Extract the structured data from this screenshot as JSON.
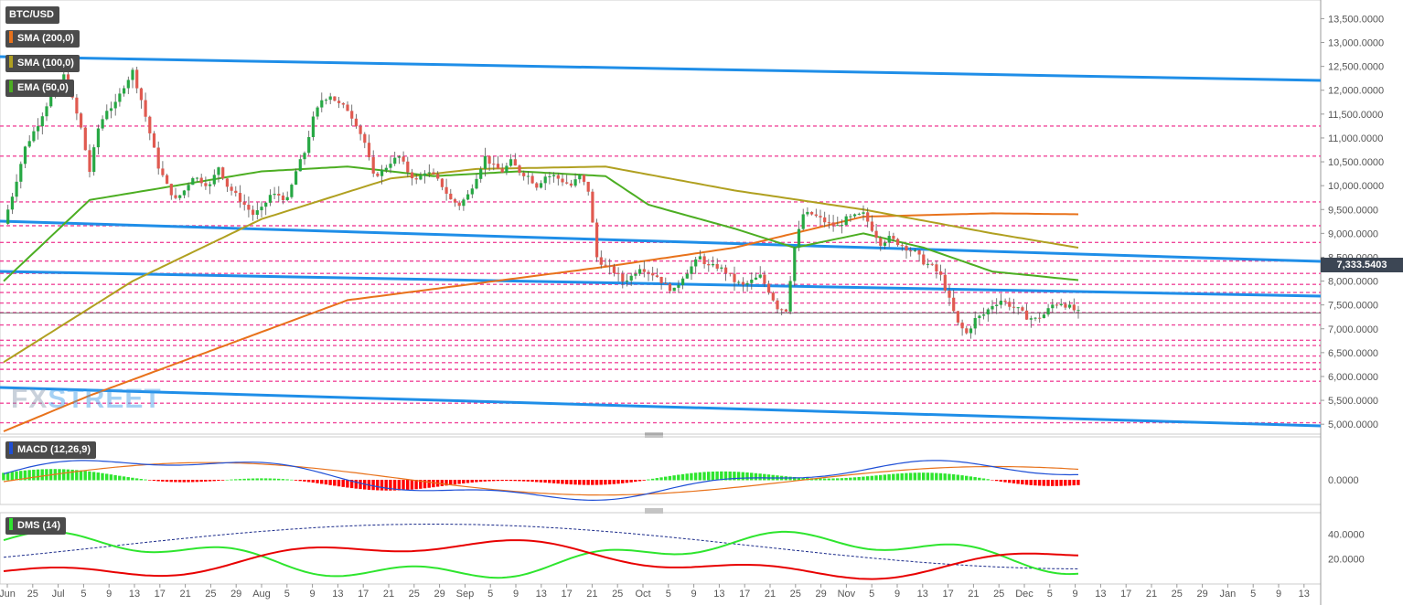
{
  "legend": {
    "symbol": "BTC/USD",
    "sma200": "SMA (200,0)",
    "sma100": "SMA (100,0)",
    "ema50": "EMA (50,0)",
    "macd": "MACD (12,26,9)",
    "dms": "DMS (14)"
  },
  "watermark": {
    "fx": "FX",
    "street": "STREET"
  },
  "current_price": "7,333.5403",
  "colors": {
    "up": "#27a844",
    "down": "#e05a50",
    "sma200": "#e8721b",
    "sma100": "#b0a020",
    "ema50": "#4cae22",
    "trend": "#1f8ee8",
    "level": "#f0489b",
    "macd_line": "#1f4fd6",
    "signal": "#e8721b",
    "hist_pos": "#2ee52e",
    "hist_neg": "#ff0000",
    "dmi_plus": "#2ee52e",
    "dmi_minus": "#e80000",
    "adx": "#1a2a8a"
  },
  "chart_data": [
    {
      "type": "candlestick",
      "title": "BTC/USD",
      "ylim": [
        4850,
        13700
      ],
      "y_ticks": [
        "13,500.0000",
        "13,000.0000",
        "12,500.0000",
        "12,000.0000",
        "11,500.0000",
        "11,000.0000",
        "10,500.0000",
        "10,000.0000",
        "9,500.0000",
        "9,000.0000",
        "8,500.0000",
        "8,000.0000",
        "7,500.0000",
        "7,000.0000",
        "6,500.0000",
        "6,000.0000",
        "5,500.0000",
        "5,000.0000"
      ],
      "y_tick_values": [
        13500,
        13000,
        12500,
        12000,
        11500,
        11000,
        10500,
        10000,
        9500,
        9000,
        8500,
        8000,
        7500,
        7000,
        6500,
        6000,
        5500,
        5000
      ],
      "x_ticks": [
        "Jun",
        "25",
        "Jul",
        "5",
        "9",
        "13",
        "17",
        "21",
        "25",
        "29",
        "Aug",
        "5",
        "9",
        "13",
        "17",
        "21",
        "25",
        "29",
        "Sep",
        "5",
        "9",
        "13",
        "17",
        "21",
        "25",
        "Oct",
        "5",
        "9",
        "13",
        "17",
        "21",
        "25",
        "29",
        "Nov",
        "5",
        "9",
        "13",
        "17",
        "21",
        "25",
        "Dec",
        "5",
        "9",
        "13",
        "17",
        "21",
        "25",
        "29",
        "Jan",
        "5",
        "9",
        "13"
      ],
      "close_anchors": [
        [
          0,
          9200
        ],
        [
          2,
          9800
        ],
        [
          5,
          10800
        ],
        [
          8,
          11300
        ],
        [
          10,
          11700
        ],
        [
          12,
          12000
        ],
        [
          14,
          12300
        ],
        [
          16,
          11800
        ],
        [
          18,
          11200
        ],
        [
          20,
          10300
        ],
        [
          22,
          11200
        ],
        [
          24,
          11600
        ],
        [
          26,
          11700
        ],
        [
          28,
          12100
        ],
        [
          30,
          12400
        ],
        [
          32,
          11800
        ],
        [
          34,
          11100
        ],
        [
          36,
          10400
        ],
        [
          38,
          10000
        ],
        [
          40,
          9700
        ],
        [
          42,
          9900
        ],
        [
          44,
          10200
        ],
        [
          46,
          10100
        ],
        [
          48,
          10000
        ],
        [
          50,
          10400
        ],
        [
          52,
          10000
        ],
        [
          54,
          9800
        ],
        [
          56,
          9600
        ],
        [
          58,
          9400
        ],
        [
          60,
          9500
        ],
        [
          62,
          9800
        ],
        [
          64,
          9800
        ],
        [
          66,
          9700
        ],
        [
          68,
          10300
        ],
        [
          70,
          10700
        ],
        [
          72,
          11400
        ],
        [
          74,
          11800
        ],
        [
          76,
          11900
        ],
        [
          78,
          11700
        ],
        [
          80,
          11600
        ],
        [
          82,
          11300
        ],
        [
          84,
          10900
        ],
        [
          86,
          10200
        ],
        [
          88,
          10300
        ],
        [
          90,
          10500
        ],
        [
          92,
          10600
        ],
        [
          94,
          10300
        ],
        [
          96,
          10100
        ],
        [
          98,
          10300
        ],
        [
          100,
          10200
        ],
        [
          102,
          10000
        ],
        [
          104,
          9700
        ],
        [
          106,
          9600
        ],
        [
          108,
          9800
        ],
        [
          110,
          10200
        ],
        [
          112,
          10600
        ],
        [
          114,
          10400
        ],
        [
          116,
          10300
        ],
        [
          118,
          10500
        ],
        [
          120,
          10300
        ],
        [
          122,
          10200
        ],
        [
          124,
          10000
        ],
        [
          126,
          10200
        ],
        [
          128,
          10200
        ],
        [
          130,
          10100
        ],
        [
          132,
          10000
        ],
        [
          134,
          10200
        ],
        [
          136,
          9900
        ],
        [
          138,
          8500
        ],
        [
          140,
          8300
        ],
        [
          142,
          8200
        ],
        [
          144,
          8000
        ],
        [
          146,
          8100
        ],
        [
          148,
          8300
        ],
        [
          150,
          8200
        ],
        [
          152,
          8100
        ],
        [
          154,
          7900
        ],
        [
          156,
          7800
        ],
        [
          158,
          8100
        ],
        [
          160,
          8300
        ],
        [
          162,
          8500
        ],
        [
          164,
          8300
        ],
        [
          166,
          8300
        ],
        [
          168,
          8200
        ],
        [
          170,
          8000
        ],
        [
          172,
          7900
        ],
        [
          174,
          8000
        ],
        [
          176,
          8100
        ],
        [
          178,
          7800
        ],
        [
          180,
          7450
        ],
        [
          182,
          7400
        ],
        [
          184,
          8700
        ],
        [
          186,
          9400
        ],
        [
          188,
          9400
        ],
        [
          190,
          9300
        ],
        [
          192,
          9200
        ],
        [
          194,
          9150
        ],
        [
          196,
          9300
        ],
        [
          198,
          9350
        ],
        [
          200,
          9400
        ],
        [
          202,
          9100
        ],
        [
          204,
          8800
        ],
        [
          206,
          8900
        ],
        [
          208,
          8800
        ],
        [
          210,
          8700
        ],
        [
          212,
          8600
        ],
        [
          214,
          8400
        ],
        [
          216,
          8300
        ],
        [
          218,
          8100
        ],
        [
          220,
          7600
        ],
        [
          222,
          7100
        ],
        [
          224,
          6900
        ],
        [
          226,
          7200
        ],
        [
          228,
          7300
        ],
        [
          230,
          7500
        ],
        [
          232,
          7600
        ],
        [
          234,
          7500
        ],
        [
          236,
          7400
        ],
        [
          238,
          7250
        ],
        [
          240,
          7200
        ],
        [
          242,
          7300
        ],
        [
          244,
          7500
        ],
        [
          246,
          7550
        ],
        [
          248,
          7450
        ],
        [
          250,
          7334
        ]
      ],
      "sma200_anchors": [
        [
          0,
          4850
        ],
        [
          20,
          5600
        ],
        [
          50,
          6600
        ],
        [
          80,
          7600
        ],
        [
          110,
          7950
        ],
        [
          140,
          8300
        ],
        [
          170,
          8700
        ],
        [
          200,
          9350
        ],
        [
          230,
          9420
        ],
        [
          250,
          9400
        ]
      ],
      "sma100_anchors": [
        [
          0,
          6300
        ],
        [
          30,
          8000
        ],
        [
          60,
          9300
        ],
        [
          90,
          10150
        ],
        [
          110,
          10350
        ],
        [
          140,
          10400
        ],
        [
          170,
          9900
        ],
        [
          200,
          9500
        ],
        [
          230,
          9000
        ],
        [
          250,
          8700
        ]
      ],
      "ema50_anchors": [
        [
          0,
          8000
        ],
        [
          20,
          9700
        ],
        [
          40,
          10000
        ],
        [
          60,
          10300
        ],
        [
          80,
          10400
        ],
        [
          100,
          10200
        ],
        [
          120,
          10300
        ],
        [
          140,
          10200
        ],
        [
          150,
          9600
        ],
        [
          170,
          9100
        ],
        [
          184,
          8700
        ],
        [
          200,
          9000
        ],
        [
          214,
          8700
        ],
        [
          230,
          8200
        ],
        [
          250,
          8020
        ]
      ],
      "horizontal_levels": [
        11250,
        10620,
        9660,
        9160,
        8810,
        8420,
        8160,
        7930,
        7760,
        7540,
        7340,
        7080,
        6760,
        6650,
        6430,
        6290,
        6150,
        5900,
        5440,
        5030
      ]
    },
    {
      "type": "line+bar",
      "title": "MACD (12,26,9)",
      "y_ticks": [
        "0.0000"
      ],
      "note": "histogram and lines drawn with relative values; scale unlabeled except zero"
    },
    {
      "type": "line",
      "title": "DMS (14)",
      "y_ticks": [
        "40.0000",
        "20.0000"
      ],
      "ylim": [
        5,
        55
      ]
    }
  ]
}
